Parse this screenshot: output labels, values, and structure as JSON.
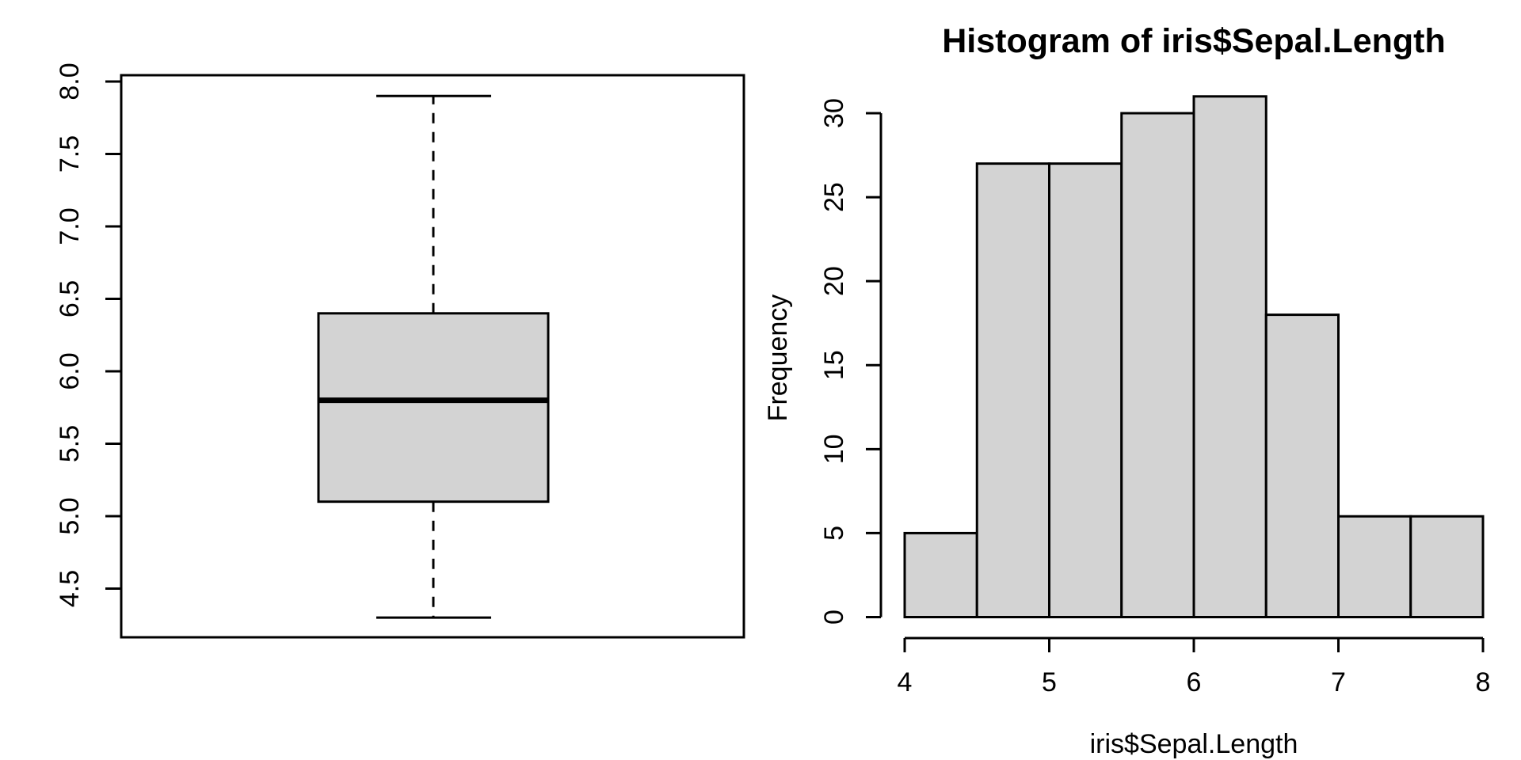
{
  "figure": {
    "background": "#ffffff",
    "foreground": "#000000",
    "panel_count": 2
  },
  "chart_data": [
    {
      "type": "boxplot",
      "orientation": "vertical",
      "title": "",
      "xlabel": "",
      "ylabel": "",
      "stats": {
        "lower_whisker": 4.3,
        "q1": 5.1,
        "median": 5.8,
        "q3": 6.4,
        "upper_whisker": 7.9
      },
      "outliers": [],
      "y_ticks": [
        4.5,
        5.0,
        5.5,
        6.0,
        6.5,
        7.0,
        7.5,
        8.0
      ],
      "y_tick_labels": [
        "4.5",
        "5.0",
        "5.5",
        "6.0",
        "6.5",
        "7.0",
        "7.5",
        "8.0"
      ],
      "ylim": [
        4.16,
        8.04
      ],
      "grid": false,
      "frame_box": true,
      "box_fill": "#d3d3d3",
      "line_color": "#000000"
    },
    {
      "type": "bar",
      "subtype": "histogram",
      "title": "Histogram of iris$Sepal.Length",
      "xlabel": "iris$Sepal.Length",
      "ylabel": "Frequency",
      "bin_edges": [
        4.0,
        4.5,
        5.0,
        5.5,
        6.0,
        6.5,
        7.0,
        7.5,
        8.0
      ],
      "frequencies": [
        5,
        27,
        27,
        30,
        31,
        18,
        6,
        6
      ],
      "x_ticks": [
        4,
        5,
        6,
        7,
        8
      ],
      "x_tick_labels": [
        "4",
        "5",
        "6",
        "7",
        "8"
      ],
      "y_ticks": [
        0,
        5,
        10,
        15,
        20,
        25,
        30
      ],
      "y_tick_labels": [
        "0",
        "5",
        "10",
        "15",
        "20",
        "25",
        "30"
      ],
      "xlim": [
        4,
        8
      ],
      "ylim": [
        0,
        31
      ],
      "grid": false,
      "legend": null,
      "bar_fill": "#d3d3d3",
      "line_color": "#000000"
    }
  ]
}
